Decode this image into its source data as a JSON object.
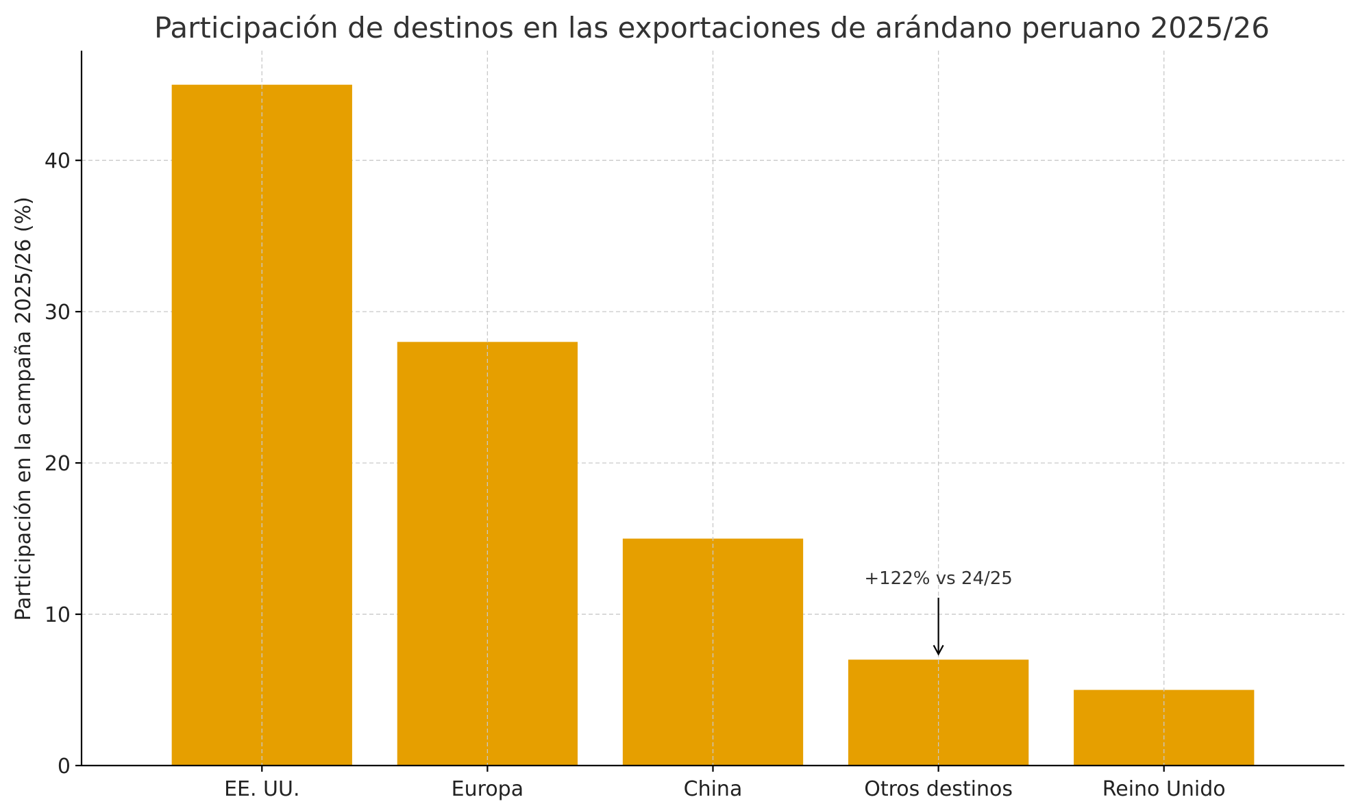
{
  "chart_data": {
    "type": "bar",
    "title": "Participación de destinos en las exportaciones de arándano peruano 2025/26",
    "xlabel": "",
    "ylabel": "Participación en la campaña 2025/26 (%)",
    "categories": [
      "EE. UU.",
      "Europa",
      "China",
      "Otros destinos",
      "Reino Unido"
    ],
    "values": [
      45,
      28,
      15,
      7,
      5
    ],
    "ylim": [
      0,
      47.25
    ],
    "yticks": [
      0,
      10,
      20,
      30,
      40
    ],
    "grid": true,
    "bar_color": "#E69F00",
    "annotations": [
      {
        "text": "+122% vs 24/25",
        "category": "Otros destinos",
        "target_value": 7,
        "text_value": 12
      }
    ]
  }
}
